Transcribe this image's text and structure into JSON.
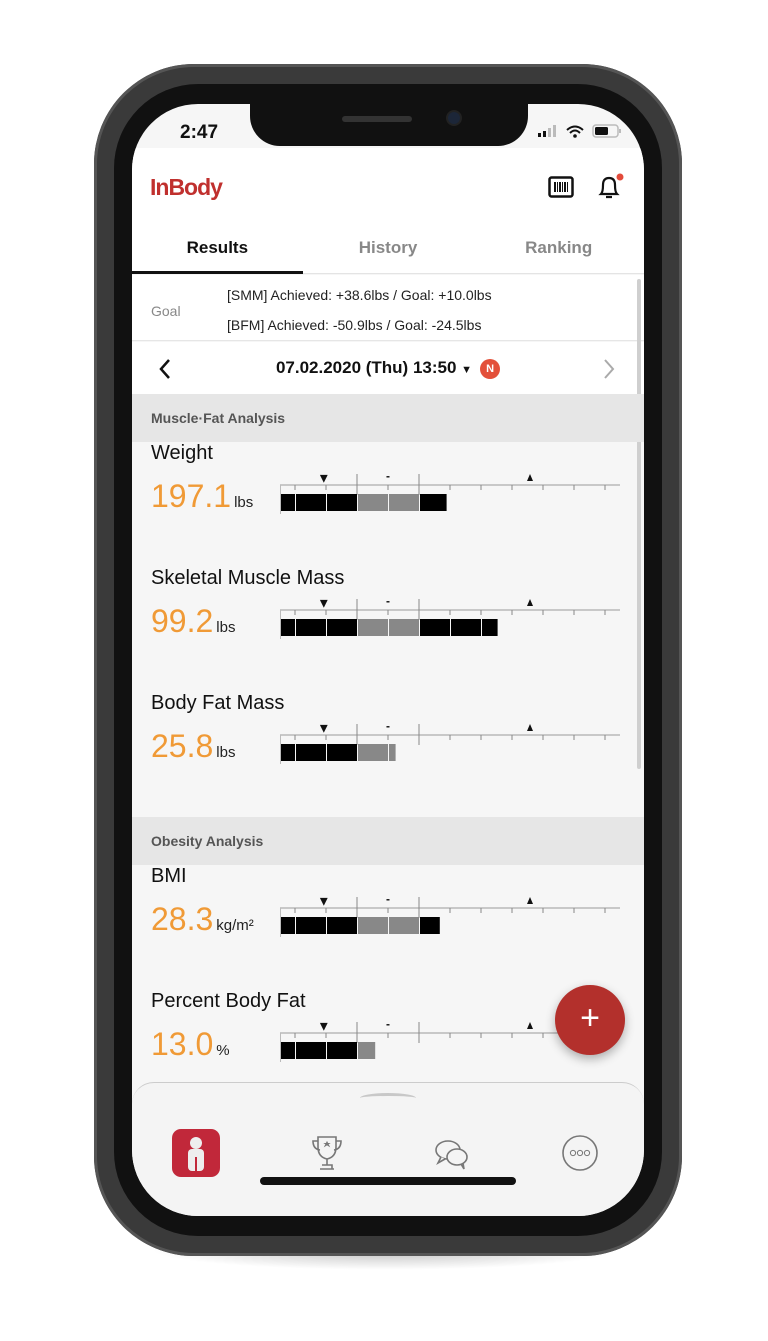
{
  "status_bar": {
    "time": "2:47"
  },
  "header": {
    "logo": "InBody",
    "icons": [
      "barcode-icon",
      "bell-icon"
    ],
    "notification_dot_color": "#e34b3b"
  },
  "tabs": [
    {
      "label": "Results",
      "active": true
    },
    {
      "label": "History",
      "active": false
    },
    {
      "label": "Ranking",
      "active": false
    }
  ],
  "goal": {
    "label": "Goal",
    "smm": "[SMM] Achieved: +38.6lbs / Goal: +10.0lbs",
    "bfm": "[BFM] Achieved: -50.9lbs / Goal: -24.5lbs"
  },
  "date_nav": {
    "date": "07.02.2020 (Thu) 13:50",
    "badge": "N"
  },
  "sections": [
    {
      "title": "Muscle·Fat Analysis",
      "metrics": [
        {
          "name": "Weight",
          "value": "197.1",
          "unit": "lbs",
          "fill_percent": 49
        },
        {
          "name": "Skeletal Muscle Mass",
          "value": "99.2",
          "unit": "lbs",
          "fill_percent": 64
        },
        {
          "name": "Body Fat Mass",
          "value": "25.8",
          "unit": "lbs",
          "fill_percent": 34
        }
      ]
    },
    {
      "title": "Obesity Analysis",
      "metrics": [
        {
          "name": "BMI",
          "value": "28.3",
          "unit": "kg/m²",
          "fill_percent": 47
        },
        {
          "name": "Percent Body Fat",
          "value": "13.0",
          "unit": "%",
          "fill_percent": 28
        }
      ]
    }
  ],
  "normal_range_marker": "-",
  "fab": {
    "label": "+"
  },
  "bottom_nav": [
    "inbody-results-icon",
    "trophy-icon",
    "chat-icon",
    "more-icon"
  ],
  "colors": {
    "accent": "#b3302c",
    "value": "#f09a36",
    "logo": "#c0302e"
  }
}
